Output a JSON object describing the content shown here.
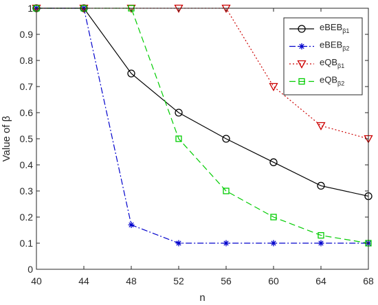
{
  "chart_data": {
    "type": "line",
    "xlabel": "n",
    "ylabel": "Value of β",
    "x": [
      40,
      44,
      48,
      52,
      56,
      60,
      64,
      68
    ],
    "xlim": [
      40,
      68
    ],
    "ylim": [
      0,
      1
    ],
    "xticks": [
      "40",
      "44",
      "48",
      "52",
      "56",
      "60",
      "64",
      "68"
    ],
    "yticks": [
      "0",
      "0.1",
      "0.2",
      "0.3",
      "0.4",
      "0.5",
      "0.6",
      "0.7",
      "0.8",
      "0.9",
      "1"
    ],
    "grid": false,
    "legend_position": "top-right",
    "series": [
      {
        "name_main": "eBEB",
        "name_sub": "β1",
        "color": "#000000",
        "line_style": "solid",
        "marker": "circle",
        "values": [
          1,
          1,
          0.75,
          0.6,
          0.5,
          0.41,
          0.32,
          0.28
        ]
      },
      {
        "name_main": "eBEB",
        "name_sub": "β2",
        "color": "#0000cc",
        "line_style": "dash-dot",
        "marker": "asterisk",
        "values": [
          1,
          1,
          0.17,
          0.1,
          0.1,
          0.1,
          0.1,
          0.1
        ]
      },
      {
        "name_main": "eQB",
        "name_sub": "β1",
        "color": "#cc0000",
        "line_style": "dotted",
        "marker": "triangle-down",
        "values": [
          1,
          1,
          1,
          1,
          1,
          0.7,
          0.55,
          0.5
        ]
      },
      {
        "name_main": "eQB",
        "name_sub": "β2",
        "color": "#00cc00",
        "line_style": "dashed",
        "marker": "square",
        "values": [
          1,
          1,
          1,
          0.5,
          0.3,
          0.2,
          0.13,
          0.1
        ]
      }
    ]
  }
}
